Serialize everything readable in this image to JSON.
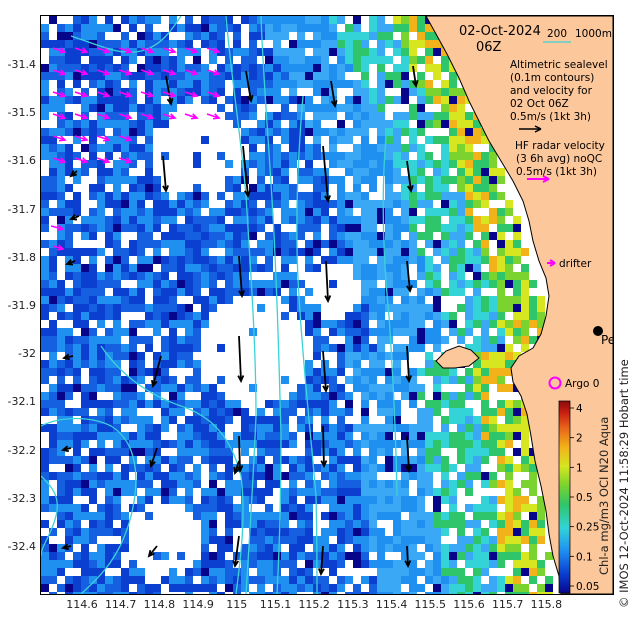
{
  "header": {
    "date": "02-Oct-2024",
    "hour": "06Z",
    "scale_value": "200",
    "scale_unit": "1000m"
  },
  "legend": {
    "altimetry_line1": "Altimetric sealevel",
    "altimetry_line2": "(0.1m contours)",
    "altimetry_line3": "and velocity for",
    "altimetry_line4": "02 Oct 06Z",
    "altimetry_line5": "0.5m/s (1kt 3h)",
    "hf_line1": "HF radar velocity",
    "hf_line2": "(3 6h avg) noQC",
    "hf_line3": "0.5m/s (1kt 3h)",
    "drifter": "drifter",
    "argo": "Argo 0",
    "city": "Perth"
  },
  "axes": {
    "lat_ticks": [
      "-31.4",
      "-31.5",
      "-31.6",
      "-31.7",
      "-31.8",
      "-31.9",
      "-32",
      "-32.1",
      "-32.2",
      "-32.3",
      "-32.4"
    ],
    "lon_ticks": [
      "114.6",
      "114.7",
      "114.8",
      "114.9",
      "115",
      "115.1",
      "115.2",
      "115.3",
      "115.4",
      "115.5",
      "115.6",
      "115.7",
      "115.8"
    ]
  },
  "colorbar": {
    "label": "Chl-a mg/m3 OCI N20 Aqua",
    "ticks": [
      "0.05",
      "0.1",
      "0.25",
      "0.5",
      "1",
      "2",
      "4"
    ],
    "stops": [
      "#07068a",
      "#0a3fd0",
      "#1f8ff0",
      "#33d3d8",
      "#2fc56a",
      "#7ad32f",
      "#d6e620",
      "#f2b21a",
      "#e8641a",
      "#c81e12",
      "#8a0c0c"
    ]
  },
  "colors": {
    "land": "#fcc79a",
    "current_contour": "#3ad3d8",
    "hf_arrow": "#ff00ff",
    "altimetry_arrow": "#000000"
  },
  "credit": "© IMOS 12-Oct-2024 11:58:29 Hobart time",
  "perth_time_label": "Perth"
}
